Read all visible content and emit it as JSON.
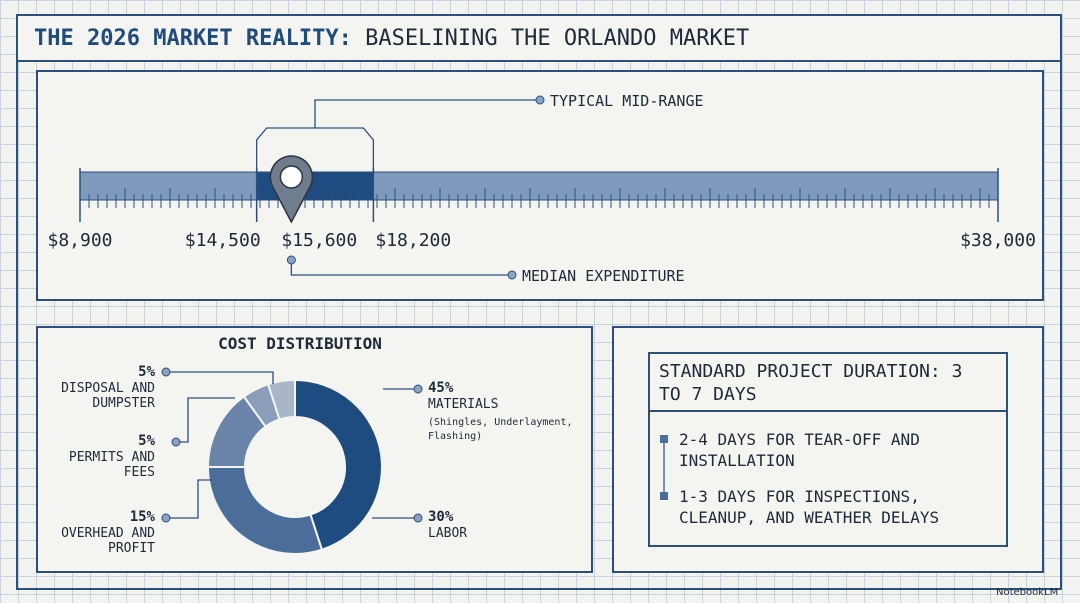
{
  "header": {
    "title_bold": "THE 2026 MARKET REALITY:",
    "title_rest": "BASELINING THE ORLANDO MARKET"
  },
  "price_range": {
    "min": {
      "value": 8900,
      "label": "$8,900"
    },
    "range_low": {
      "value": 14500,
      "label": "$14,500"
    },
    "median": {
      "value": 15600,
      "label": "$15,600"
    },
    "range_high": {
      "value": 18200,
      "label": "$18,200"
    },
    "max": {
      "value": 38000,
      "label": "$38,000"
    },
    "range_label": "TYPICAL MID-RANGE",
    "median_label": "MEDIAN EXPENDITURE"
  },
  "chart_data": {
    "type": "pie",
    "title": "COST DISTRIBUTION",
    "categories": [
      "MATERIALS",
      "LABOR",
      "OVERHEAD AND PROFIT",
      "PERMITS AND FEES",
      "DISPOSAL AND DUMPSTER"
    ],
    "values": [
      45,
      30,
      15,
      5,
      5
    ],
    "value_labels": [
      "45%",
      "30%",
      "15%",
      "5%",
      "5%"
    ],
    "colors": [
      "#1f4c80",
      "#4a6e99",
      "#6984a8",
      "#8a9dba",
      "#a8b6c8"
    ],
    "annotation": "(Shingles, Underlayment, Flashing)"
  },
  "duration": {
    "title": "STANDARD PROJECT DURATION: 3 TO 7 DAYS",
    "items": [
      "2-4 DAYS FOR TEAR-OFF AND INSTALLATION",
      "1-3 DAYS FOR INSPECTIONS, CLEANUP, AND WEATHER DELAYS"
    ]
  },
  "watermark": "NotebookLM"
}
